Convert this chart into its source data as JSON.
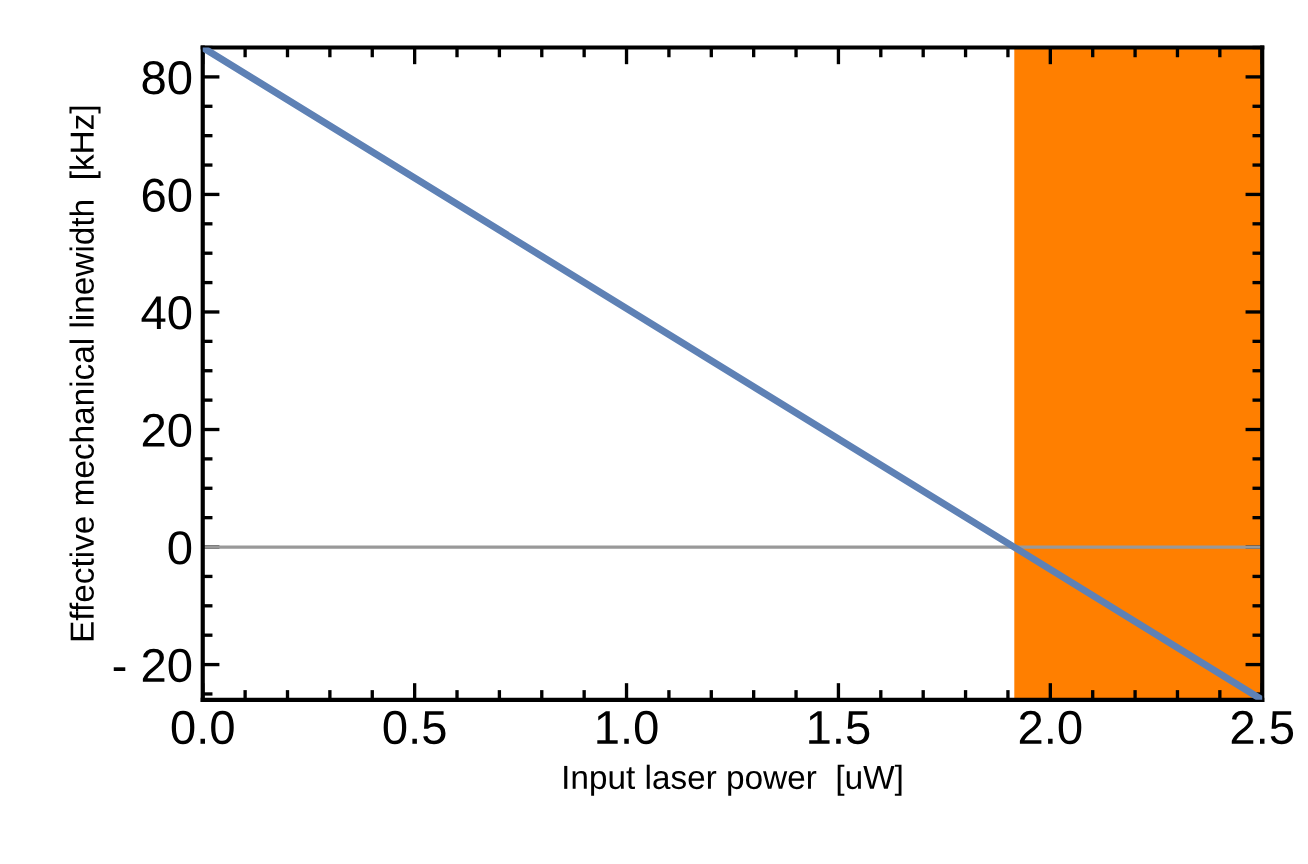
{
  "chart_data": {
    "type": "line",
    "xlabel": "Input laser power  [uW]",
    "ylabel": "Effective mechanical linewidth  [kHz]",
    "series": [
      {
        "color": "#5e81b5",
        "x": [
          0,
          2.5
        ],
        "values": [
          85,
          -26
        ]
      }
    ],
    "xlim": [
      0,
      2.5
    ],
    "ylim": [
      -26,
      85
    ],
    "xticks": [
      {
        "value": 0,
        "label": "0.0"
      },
      0.5,
      {
        "value": 1,
        "label": "1.0"
      },
      1.5,
      {
        "value": 2,
        "label": "2.0"
      },
      2.5
    ],
    "yticks": [
      {
        "value": -20,
        "label": "- 20"
      },
      0,
      20,
      40,
      60,
      80
    ],
    "ref_lines": [
      {
        "axis": "y",
        "value": 0,
        "color": "#999999"
      }
    ],
    "bands": [
      {
        "axis": "x",
        "from": 1.915,
        "to": 2.5,
        "color": "#ff7f00"
      }
    ],
    "grid": false,
    "legend": false,
    "marker": "none",
    "line_style": "solid"
  }
}
